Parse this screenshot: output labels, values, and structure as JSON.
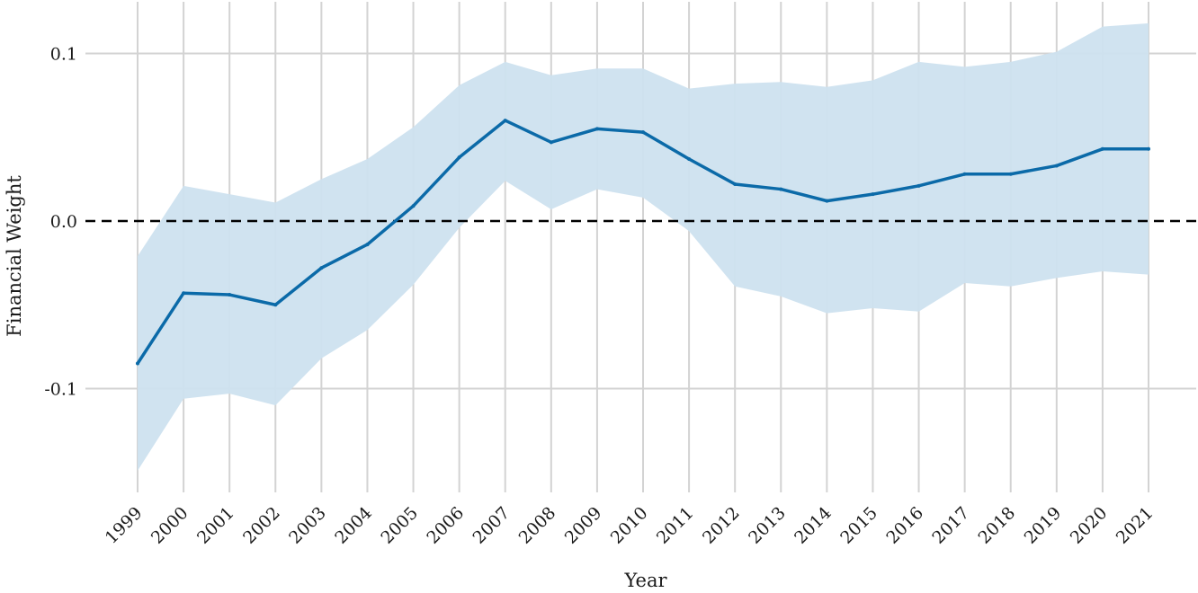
{
  "chart_data": {
    "type": "line",
    "title": "",
    "xlabel": "Year",
    "ylabel": "Financial Weight",
    "x": [
      1999,
      2000,
      2001,
      2002,
      2003,
      2004,
      2005,
      2006,
      2007,
      2008,
      2009,
      2010,
      2011,
      2012,
      2013,
      2014,
      2015,
      2016,
      2017,
      2018,
      2019,
      2020,
      2021
    ],
    "x_tick_labels": [
      "1999",
      "2000",
      "2001",
      "2002",
      "2003",
      "2004",
      "2005",
      "2006",
      "2007",
      "2008",
      "2009",
      "2010",
      "2011",
      "2012",
      "2013",
      "2014",
      "2015",
      "2016",
      "2017",
      "2018",
      "2019",
      "2020",
      "2021"
    ],
    "y_ticks": [
      -0.1,
      0.0,
      0.1
    ],
    "y_tick_labels": [
      "-0.1",
      "0.0",
      "0.1"
    ],
    "ylim": [
      -0.165,
      0.12
    ],
    "grid": true,
    "reference_line": {
      "y": 0.0,
      "style": "dashed",
      "color": "#000000"
    },
    "series": [
      {
        "values": [
          -0.085,
          -0.043,
          -0.044,
          -0.05,
          -0.028,
          -0.014,
          0.009,
          0.038,
          0.06,
          0.047,
          0.055,
          0.053,
          0.037,
          0.022,
          0.019,
          0.012,
          0.016,
          0.021,
          0.028,
          0.028,
          0.033,
          0.043,
          0.043
        ],
        "upper": [
          -0.021,
          0.021,
          0.016,
          0.011,
          0.025,
          0.037,
          0.056,
          0.081,
          0.095,
          0.087,
          0.091,
          0.091,
          0.079,
          0.082,
          0.083,
          0.08,
          0.084,
          0.095,
          0.092,
          0.095,
          0.101,
          0.116,
          0.118
        ],
        "lower": [
          -0.149,
          -0.106,
          -0.103,
          -0.11,
          -0.082,
          -0.065,
          -0.038,
          -0.004,
          0.024,
          0.007,
          0.019,
          0.014,
          -0.006,
          -0.039,
          -0.045,
          -0.055,
          -0.052,
          -0.054,
          -0.037,
          -0.039,
          -0.034,
          -0.03,
          -0.032
        ],
        "color": "#0b6aa8",
        "band_color": "#cde1ef"
      }
    ]
  }
}
